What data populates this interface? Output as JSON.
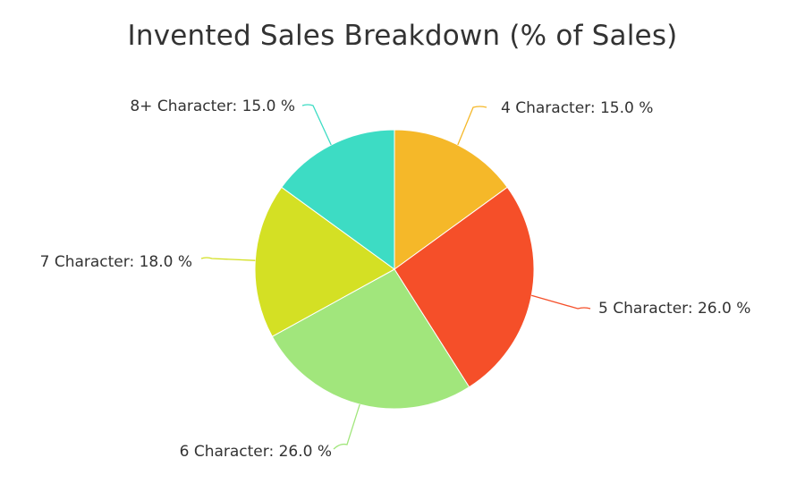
{
  "chart_data": {
    "type": "pie",
    "title": "Invented Sales Breakdown (% of Sales)",
    "slices": [
      {
        "label": "4 Character",
        "value": 15.0,
        "display": "4 Character: 15.0 %",
        "color": "#f5b829"
      },
      {
        "label": "5 Character",
        "value": 26.0,
        "display": "5 Character: 26.0 %",
        "color": "#f54f29"
      },
      {
        "label": "6 Character",
        "value": 26.0,
        "display": "6 Character: 26.0 %",
        "color": "#a1e67c"
      },
      {
        "label": "7 Character",
        "value": 18.0,
        "display": "7 Character: 18.0 %",
        "color": "#d4e024"
      },
      {
        "label": "8+ Character",
        "value": 15.0,
        "display": "8+ Character: 15.0 %",
        "color": "#3ddcc4"
      }
    ]
  }
}
